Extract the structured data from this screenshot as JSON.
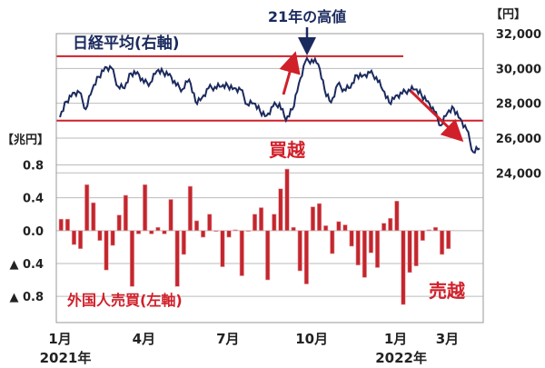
{
  "chart_data": {
    "type": "bar+line",
    "left_axis": {
      "unit_label": "【兆円】",
      "ticks": [
        0.8,
        0.4,
        0.0,
        -0.4,
        -0.8
      ],
      "tick_labels": [
        "0.8",
        "0.4",
        "0.0",
        "▲ 0.4",
        "▲ 0.8"
      ],
      "range": [
        -1.12,
        2.4
      ]
    },
    "right_axis": {
      "unit_label": "【円】",
      "ticks": [
        32000,
        30000,
        28000,
        26000,
        24000
      ],
      "tick_labels": [
        "32,000",
        "30,000",
        "28,000",
        "26,000",
        "24,000"
      ],
      "range": [
        15400,
        32000
      ]
    },
    "x_tick_labels": [
      {
        "label": "1月",
        "sub": "2021年",
        "week": 1
      },
      {
        "label": "4月",
        "week": 14
      },
      {
        "label": "7月",
        "week": 27
      },
      {
        "label": "10月",
        "week": 40
      },
      {
        "label": "1月",
        "sub": "2022年",
        "week": 53
      },
      {
        "label": "3月",
        "week": 61
      }
    ],
    "grid": true,
    "series": [
      {
        "name": "日経平均(右軸)",
        "type": "line",
        "axis": "right",
        "color": "#1b2a5e",
        "values": [
          27200,
          28100,
          28600,
          28630,
          27660,
          28780,
          29520,
          30080,
          30020,
          28960,
          28860,
          29720,
          29790,
          29180,
          29180,
          29850,
          29770,
          29680,
          29020,
          28810,
          29360,
          28080,
          28320,
          28860,
          28940,
          28950,
          29000,
          28870,
          28780,
          27940,
          28000,
          27550,
          27280,
          27820,
          27980,
          27010,
          27640,
          29130,
          30380,
          30500,
          30250,
          28770,
          28050,
          29070,
          28800,
          28890,
          29610,
          29610,
          29750,
          29500,
          28750,
          28030,
          28440,
          28550,
          28780,
          28790,
          28480,
          28120,
          27520,
          26720,
          27440,
          27700,
          27120,
          26480,
          25200,
          25400
        ]
      },
      {
        "name": "外国人売買(左軸)",
        "type": "bar",
        "axis": "left",
        "color": "#c4262e",
        "values": [
          0.14,
          0.14,
          -0.17,
          -0.22,
          0.56,
          0.34,
          -0.12,
          -0.48,
          -0.18,
          0.19,
          0.43,
          -0.68,
          -0.04,
          0.56,
          -0.04,
          0.04,
          -0.04,
          0.38,
          -0.68,
          -0.29,
          0.54,
          0.12,
          -0.08,
          0.2,
          -0.01,
          -0.44,
          -0.08,
          0.01,
          -0.55,
          0.0,
          0.2,
          0.28,
          -0.6,
          0.2,
          0.51,
          0.75,
          0.04,
          -0.49,
          -0.65,
          0.29,
          0.33,
          0.06,
          -0.28,
          0.11,
          0.07,
          -0.19,
          -0.42,
          -0.57,
          -0.27,
          -0.45,
          0.09,
          0.15,
          0.36,
          -0.9,
          -0.51,
          -0.43,
          -0.12,
          0.01,
          0.04,
          -0.29,
          -0.22
        ]
      }
    ],
    "reference_lines": [
      30700,
      27000
    ],
    "annotations": {
      "high": "21年の高値",
      "buy": "買越",
      "sell": "売越"
    }
  }
}
